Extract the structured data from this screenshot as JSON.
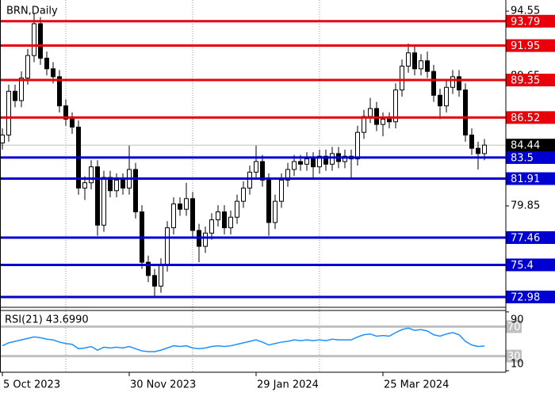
{
  "chart_data": [
    {
      "type": "candlestick",
      "title": "BRN,Daily",
      "x": [
        0,
        2,
        4,
        6,
        8,
        10,
        12,
        14,
        16,
        18,
        20,
        22,
        24,
        26,
        28,
        30,
        32,
        34,
        36,
        38,
        40,
        42,
        44,
        46,
        48,
        50,
        52,
        54,
        56,
        58,
        60,
        62,
        64,
        66,
        68,
        70,
        72,
        74,
        76,
        78,
        80,
        82,
        84,
        86,
        88,
        90,
        92,
        94,
        96,
        98,
        100,
        102,
        104,
        106,
        108,
        110,
        112,
        114,
        116,
        118,
        120,
        122,
        124,
        126,
        128,
        130,
        132,
        134,
        136,
        138,
        140,
        142,
        144,
        146,
        148,
        150,
        152
      ],
      "open": [
        84.6,
        85.2,
        88.5,
        87.8,
        89.5,
        91.2,
        93.6,
        91.0,
        90.2,
        89.6,
        87.4,
        86.4,
        85.8,
        81.2,
        81.6,
        82.8,
        78.4,
        82.0,
        81.0,
        81.8,
        81.2,
        82.6,
        79.4,
        75.6,
        74.6,
        73.8,
        75.4,
        78.2,
        80.0,
        79.6,
        80.4,
        78.0,
        76.8,
        77.8,
        78.8,
        79.4,
        78.2,
        79.0,
        80.2,
        81.2,
        82.4,
        83.2,
        81.8,
        78.6,
        80.2,
        81.8,
        82.6,
        83.2,
        83.0,
        83.4,
        82.8,
        83.6,
        83.0,
        83.8,
        83.2,
        83.6,
        83.4,
        85.4,
        86.6,
        87.2,
        86.0,
        86.4,
        86.2,
        88.6,
        90.4,
        91.4,
        90.2,
        90.8,
        90.0,
        88.2,
        87.4,
        88.8,
        89.6,
        88.6,
        85.2,
        84.2,
        83.8
      ],
      "high": [
        85.7,
        89.0,
        89.0,
        90.0,
        91.7,
        94.4,
        94.1,
        91.5,
        90.7,
        90.1,
        87.9,
        86.9,
        86.3,
        82.1,
        83.3,
        83.3,
        82.5,
        82.5,
        82.3,
        82.3,
        84.4,
        83.1,
        79.9,
        76.1,
        75.1,
        75.9,
        78.7,
        80.5,
        80.5,
        81.6,
        80.9,
        78.5,
        78.3,
        79.3,
        79.9,
        79.9,
        79.5,
        80.7,
        81.7,
        82.9,
        84.4,
        83.7,
        82.3,
        80.7,
        82.3,
        83.1,
        83.7,
        83.7,
        83.9,
        83.9,
        84.1,
        84.1,
        84.3,
        84.3,
        84.1,
        84.1,
        85.9,
        87.1,
        88.0,
        87.7,
        86.9,
        86.9,
        89.1,
        90.9,
        92.1,
        91.9,
        91.3,
        91.5,
        90.5,
        88.7,
        89.3,
        90.1,
        90.1,
        89.1,
        85.7,
        84.7,
        84.9
      ],
      "low": [
        84.1,
        84.7,
        87.3,
        87.3,
        89.0,
        90.7,
        90.5,
        89.7,
        89.1,
        86.9,
        85.9,
        85.3,
        80.7,
        80.3,
        81.1,
        77.6,
        77.9,
        80.5,
        80.5,
        80.7,
        80.7,
        78.9,
        75.1,
        74.1,
        72.9,
        73.3,
        74.9,
        77.7,
        79.1,
        79.1,
        77.5,
        75.6,
        76.3,
        77.3,
        78.3,
        77.7,
        77.7,
        78.5,
        79.7,
        80.7,
        81.9,
        81.3,
        77.6,
        78.1,
        79.7,
        81.3,
        82.1,
        82.5,
        82.5,
        82.0,
        82.3,
        82.5,
        82.5,
        82.7,
        82.7,
        82.0,
        82.9,
        84.9,
        86.1,
        85.5,
        85.1,
        85.7,
        85.7,
        88.1,
        89.9,
        89.7,
        89.7,
        89.5,
        87.7,
        86.4,
        86.9,
        88.3,
        88.1,
        84.7,
        83.7,
        82.6,
        83.3
      ],
      "close": [
        85.2,
        88.5,
        87.8,
        89.5,
        91.2,
        93.6,
        91.0,
        90.2,
        89.6,
        87.4,
        86.4,
        85.8,
        81.2,
        81.6,
        82.8,
        78.4,
        82.0,
        81.0,
        81.8,
        81.2,
        82.6,
        79.4,
        75.6,
        74.6,
        73.8,
        75.4,
        78.2,
        80.0,
        79.6,
        80.4,
        78.0,
        76.8,
        77.8,
        78.8,
        79.4,
        78.2,
        79.0,
        80.2,
        81.2,
        82.4,
        83.2,
        81.8,
        78.6,
        80.2,
        81.8,
        82.6,
        83.2,
        83.0,
        83.4,
        82.8,
        83.6,
        83.0,
        83.8,
        83.2,
        83.6,
        83.4,
        85.4,
        86.6,
        87.2,
        86.0,
        86.4,
        86.2,
        88.6,
        90.4,
        91.4,
        90.2,
        90.8,
        90.0,
        88.2,
        87.4,
        88.8,
        89.6,
        88.6,
        85.2,
        84.2,
        83.8,
        84.44
      ],
      "xlim": [
        -0.75,
        158.75
      ],
      "xticks": [
        {
          "value": 0,
          "label": "5 Oct 2023"
        },
        {
          "value": 40,
          "label": "30 Nov 2023"
        },
        {
          "value": 80,
          "label": "29 Jan 2024"
        },
        {
          "value": 120,
          "label": "25 Mar 2024"
        }
      ],
      "ylim": [
        72.2,
        95.39
      ],
      "yticks": [
        94.55,
        89.65,
        79.85
      ],
      "current_price": 84.44,
      "levels": [
        {
          "value": 93.79,
          "color": "#e8000b"
        },
        {
          "value": 91.95,
          "color": "#e8000b"
        },
        {
          "value": 89.35,
          "color": "#e8000b"
        },
        {
          "value": 86.52,
          "color": "#e8000b"
        },
        {
          "value": 83.5,
          "color": "#0000d0"
        },
        {
          "value": 81.91,
          "color": "#0000d0"
        },
        {
          "value": 77.46,
          "color": "#0000d0"
        },
        {
          "value": 75.4,
          "color": "#0000d0"
        },
        {
          "value": 72.98,
          "color": "#0000d0"
        }
      ]
    },
    {
      "type": "line",
      "title": "RSI(21) 43.6990",
      "color": "#1e90ff",
      "x": [
        0,
        2,
        4,
        6,
        8,
        10,
        12,
        14,
        16,
        18,
        20,
        22,
        24,
        26,
        28,
        30,
        32,
        34,
        36,
        38,
        40,
        42,
        44,
        46,
        48,
        50,
        52,
        54,
        56,
        58,
        60,
        62,
        64,
        66,
        68,
        70,
        72,
        74,
        76,
        78,
        80,
        82,
        84,
        86,
        88,
        90,
        92,
        94,
        96,
        98,
        100,
        102,
        104,
        106,
        108,
        110,
        112,
        114,
        116,
        118,
        120,
        122,
        124,
        126,
        128,
        130,
        132,
        134,
        136,
        138,
        140,
        142,
        144,
        146,
        148,
        150,
        152
      ],
      "values": [
        44,
        48,
        50,
        52,
        54,
        56,
        55,
        53,
        52,
        49,
        47,
        46,
        40,
        41,
        43,
        38,
        42,
        41,
        42,
        41,
        43,
        40,
        37,
        36,
        36,
        38,
        41,
        44,
        43,
        44,
        41,
        40,
        41,
        43,
        44,
        43,
        44,
        46,
        48,
        50,
        52,
        49,
        45,
        47,
        49,
        50,
        52,
        51,
        52,
        51,
        52,
        51,
        53,
        52,
        52,
        52,
        56,
        59,
        60,
        57,
        58,
        57,
        62,
        66,
        68,
        65,
        66,
        64,
        59,
        57,
        60,
        62,
        59,
        50,
        45,
        43,
        43.699
      ],
      "xlim": [
        -0.75,
        158.75
      ],
      "ylim": [
        8,
        92
      ],
      "yticks": [
        90,
        10
      ],
      "levels": [
        70,
        30
      ]
    }
  ]
}
